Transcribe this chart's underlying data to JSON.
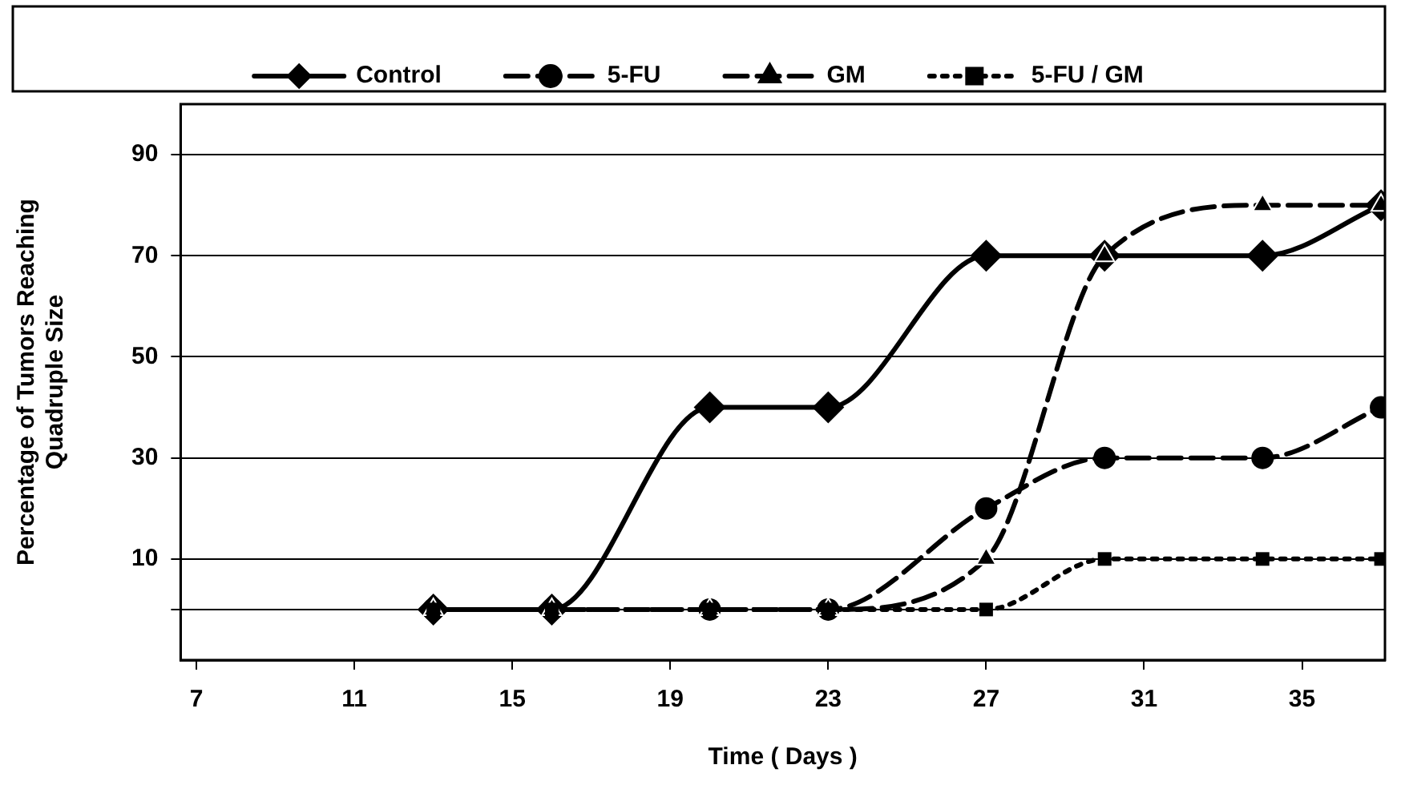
{
  "chart_data": {
    "type": "line",
    "xlabel": "Time ( Days )",
    "ylabel": "Percentage of Tumors Reaching Quadruple Size",
    "x": [
      13,
      16,
      20,
      23,
      27,
      30,
      34,
      37
    ],
    "series": [
      {
        "name": "Control",
        "color": "#000000",
        "values": [
          0,
          0,
          40,
          40,
          70,
          70,
          70,
          80
        ],
        "marker": "diamond",
        "line_style": "solid"
      },
      {
        "name": "5-FU",
        "color": "#000000",
        "values": [
          0,
          0,
          0,
          0,
          20,
          30,
          30,
          40
        ],
        "marker": "circle",
        "line_style": "dashed"
      },
      {
        "name": "GM",
        "color": "#000000",
        "values": [
          0,
          0,
          0,
          0,
          10,
          70,
          80,
          80
        ],
        "marker": "triangle",
        "line_style": "dashed"
      },
      {
        "name": "5-FU / GM",
        "color": "#000000",
        "values": [
          0,
          0,
          0,
          0,
          0,
          10,
          10,
          10
        ],
        "marker": "square",
        "line_style": "dotted"
      }
    ],
    "xlim": [
      6.6,
      37.1
    ],
    "xticks": [
      7,
      11,
      15,
      19,
      23,
      27,
      31,
      35
    ],
    "ylim": [
      -10,
      100
    ],
    "yticks": [
      {
        "value": 0,
        "label": null
      },
      10,
      30,
      50,
      70,
      90
    ],
    "grid": "y",
    "legend": "top"
  }
}
